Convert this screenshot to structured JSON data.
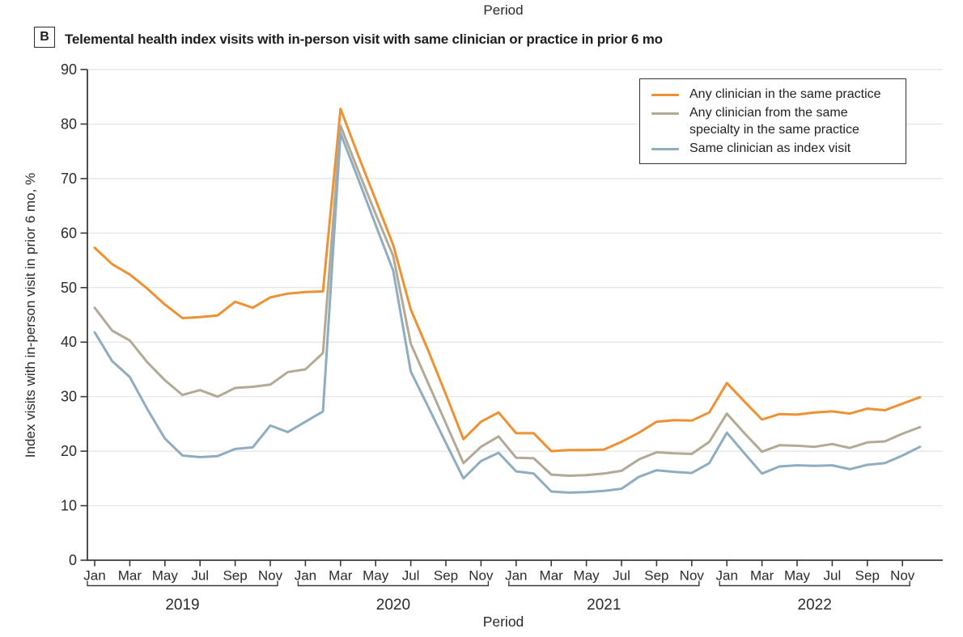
{
  "page": {
    "top_axis_label": "Period",
    "panel_label": "B",
    "panel_title": "Telemental health index visits with in-person visit with same clinician or practice in prior 6 mo"
  },
  "chart_data": {
    "type": "line",
    "title": "Telemental health index visits with in-person visit with same clinician or practice in prior 6 mo",
    "xlabel": "Period",
    "ylabel": "Index visits with in-person visit in prior 6 mo, %",
    "ylim": [
      0,
      90
    ],
    "yticks": [
      0,
      10,
      20,
      30,
      40,
      50,
      60,
      70,
      80,
      90
    ],
    "grid": true,
    "legend_position": "top-right",
    "x_unit": "month",
    "x_range": "Jan 2019 - Dec 2022",
    "years": [
      "2019",
      "2020",
      "2021",
      "2022"
    ],
    "month_tick_labels": [
      "Jan",
      "Mar",
      "May",
      "Jul",
      "Sep",
      "Nov"
    ],
    "axis_color": "#3a3a3a",
    "gridline_color": "#e4e4e4",
    "text_color": "#2b2b2b",
    "series": [
      {
        "name": "Any clinician in the same practice",
        "color": "#EE9133",
        "values": [
          57.3,
          54.3,
          52.4,
          49.8,
          46.9,
          44.4,
          44.6,
          44.9,
          47.4,
          46.3,
          48.2,
          48.9,
          49.2,
          49.3,
          82.8,
          74.3,
          66.1,
          57.8,
          46.0,
          38.4,
          30.4,
          22.2,
          25.4,
          27.1,
          23.3,
          23.3,
          20.0,
          20.2,
          20.2,
          20.3,
          21.7,
          23.4,
          25.4,
          25.7,
          25.6,
          27.1,
          32.5,
          29.1,
          25.8,
          26.8,
          26.7,
          27.1,
          27.3,
          26.9,
          27.8,
          27.5,
          28.7,
          29.9
        ]
      },
      {
        "name": "Any clinician from the same specialty in the same practice",
        "color": "#B3AA96",
        "values": [
          46.3,
          42.1,
          40.3,
          36.3,
          33.0,
          30.3,
          31.2,
          30.0,
          31.6,
          31.8,
          32.2,
          34.5,
          35.0,
          38.0,
          79.7,
          71.5,
          63.5,
          55.8,
          39.7,
          32.4,
          25.1,
          17.8,
          20.8,
          22.7,
          18.8,
          18.7,
          15.7,
          15.5,
          15.6,
          15.9,
          16.4,
          18.5,
          19.8,
          19.6,
          19.5,
          21.7,
          26.9,
          23.3,
          19.9,
          21.1,
          21.0,
          20.8,
          21.3,
          20.6,
          21.6,
          21.8,
          23.2,
          24.4
        ]
      },
      {
        "name": "Same clinician as index visit",
        "color": "#8FADC1",
        "values": [
          41.8,
          36.5,
          33.6,
          27.7,
          22.3,
          19.2,
          18.9,
          19.1,
          20.4,
          20.7,
          24.7,
          23.5,
          25.4,
          27.3,
          78.3,
          70.0,
          61.5,
          53.1,
          34.6,
          28.1,
          21.5,
          15.0,
          18.2,
          19.7,
          16.3,
          15.9,
          12.6,
          12.4,
          12.5,
          12.7,
          13.1,
          15.3,
          16.5,
          16.2,
          16.0,
          17.8,
          23.4,
          19.6,
          15.9,
          17.2,
          17.4,
          17.3,
          17.4,
          16.7,
          17.5,
          17.8,
          19.2,
          20.8
        ]
      }
    ]
  }
}
